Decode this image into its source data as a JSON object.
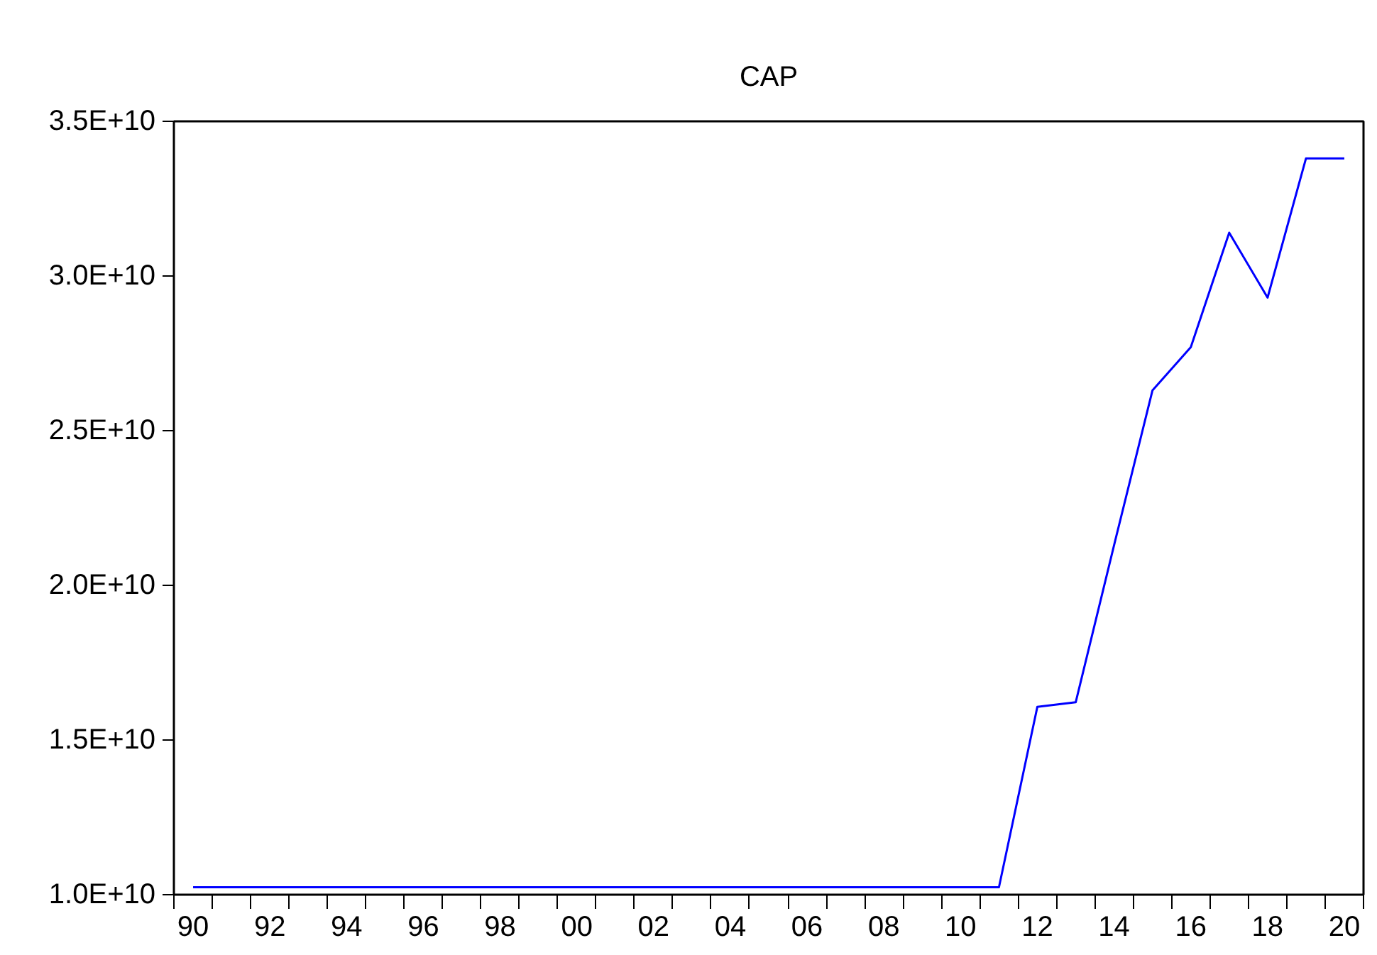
{
  "chart_data": {
    "type": "line",
    "title": "CAP",
    "x": [
      1990,
      1991,
      1992,
      1993,
      1994,
      1995,
      1996,
      1997,
      1998,
      1999,
      2000,
      2001,
      2002,
      2003,
      2004,
      2005,
      2006,
      2007,
      2008,
      2009,
      2010,
      2011,
      2012,
      2013,
      2014,
      2015,
      2016,
      2017,
      2018,
      2019,
      2020
    ],
    "series": [
      {
        "color": "#0000ff",
        "values": [
          10240000000.0,
          10240000000.0,
          10240000000.0,
          10240000000.0,
          10240000000.0,
          10240000000.0,
          10240000000.0,
          10240000000.0,
          10240000000.0,
          10240000000.0,
          10240000000.0,
          10240000000.0,
          10240000000.0,
          10240000000.0,
          10240000000.0,
          10240000000.0,
          10240000000.0,
          10240000000.0,
          10240000000.0,
          10240000000.0,
          10240000000.0,
          10240000000.0,
          16070000000.0,
          16220000000.0,
          21300000000.0,
          26300000000.0,
          27700000000.0,
          31400000000.0,
          29300000000.0,
          33800000000.0,
          33800000000.0
        ]
      }
    ],
    "xlim": [
      1989.5,
      2020.5
    ],
    "xticks": [
      {
        "value": 1990,
        "label": "90"
      },
      {
        "value": 1992,
        "label": "92"
      },
      {
        "value": 1994,
        "label": "94"
      },
      {
        "value": 1996,
        "label": "96"
      },
      {
        "value": 1998,
        "label": "98"
      },
      {
        "value": 2000,
        "label": "00"
      },
      {
        "value": 2002,
        "label": "02"
      },
      {
        "value": 2004,
        "label": "04"
      },
      {
        "value": 2006,
        "label": "06"
      },
      {
        "value": 2008,
        "label": "08"
      },
      {
        "value": 2010,
        "label": "10"
      },
      {
        "value": 2012,
        "label": "12"
      },
      {
        "value": 2014,
        "label": "14"
      },
      {
        "value": 2016,
        "label": "16"
      },
      {
        "value": 2018,
        "label": "18"
      },
      {
        "value": 2020,
        "label": "20"
      },
      {
        "value": 1989.5,
        "label": null
      },
      {
        "value": 1990.5,
        "label": null
      },
      {
        "value": 1991.5,
        "label": null
      },
      {
        "value": 1992.5,
        "label": null
      },
      {
        "value": 1993.5,
        "label": null
      },
      {
        "value": 1994.5,
        "label": null
      },
      {
        "value": 1995.5,
        "label": null
      },
      {
        "value": 1996.5,
        "label": null
      },
      {
        "value": 1997.5,
        "label": null
      },
      {
        "value": 1998.5,
        "label": null
      },
      {
        "value": 1999.5,
        "label": null
      },
      {
        "value": 2000.5,
        "label": null
      },
      {
        "value": 2001.5,
        "label": null
      },
      {
        "value": 2002.5,
        "label": null
      },
      {
        "value": 2003.5,
        "label": null
      },
      {
        "value": 2004.5,
        "label": null
      },
      {
        "value": 2005.5,
        "label": null
      },
      {
        "value": 2006.5,
        "label": null
      },
      {
        "value": 2007.5,
        "label": null
      },
      {
        "value": 2008.5,
        "label": null
      },
      {
        "value": 2009.5,
        "label": null
      },
      {
        "value": 2010.5,
        "label": null
      },
      {
        "value": 2011.5,
        "label": null
      },
      {
        "value": 2012.5,
        "label": null
      },
      {
        "value": 2013.5,
        "label": null
      },
      {
        "value": 2014.5,
        "label": null
      },
      {
        "value": 2015.5,
        "label": null
      },
      {
        "value": 2016.5,
        "label": null
      },
      {
        "value": 2017.5,
        "label": null
      },
      {
        "value": 2018.5,
        "label": null
      },
      {
        "value": 2019.5,
        "label": null
      },
      {
        "value": 2020.5,
        "label": null
      }
    ],
    "ylim": [
      10000000000.0,
      35000000000.0
    ],
    "yticks": [
      {
        "value": 10000000000.0,
        "label": "1.0E+10"
      },
      {
        "value": 15000000000.0,
        "label": "1.5E+10"
      },
      {
        "value": 20000000000.0,
        "label": "2.0E+10"
      },
      {
        "value": 25000000000.0,
        "label": "2.5E+10"
      },
      {
        "value": 30000000000.0,
        "label": "3.0E+10"
      },
      {
        "value": 35000000000.0,
        "label": "3.5E+10"
      }
    ],
    "grid": false,
    "marker": "none",
    "line_style": "solid"
  }
}
